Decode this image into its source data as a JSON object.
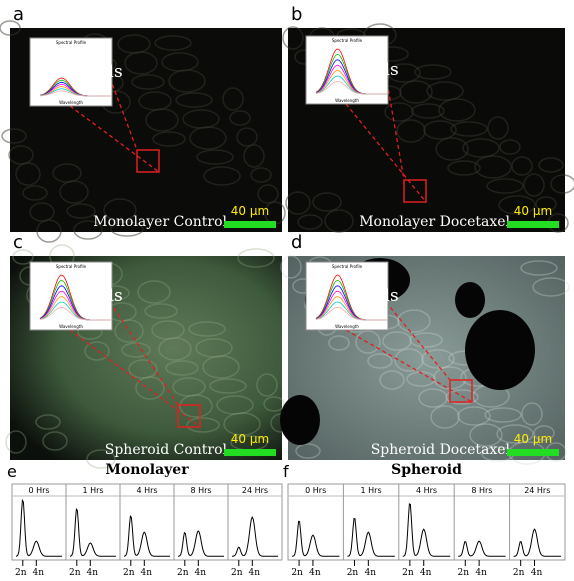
{
  "panels": [
    {
      "letter": "a",
      "caption": "Monolayer Control",
      "scale": "40 μm",
      "inset_label": "Cells",
      "inset_title": "Spectral Profile",
      "inset_xlabel": "Wavelength"
    },
    {
      "letter": "b",
      "caption": "Monolayer Docetaxel",
      "scale": "40 μm",
      "inset_label": "Cells",
      "inset_title": "Spectral Profile",
      "inset_xlabel": "Wavelength"
    },
    {
      "letter": "c",
      "caption": "Spheroid Control",
      "scale": "40 μm",
      "inset_label": "Cells",
      "inset_title": "Spectral Profile",
      "inset_xlabel": "Wavelength"
    },
    {
      "letter": "d",
      "caption": "Spheroid Docetaxel",
      "scale": "40 μm",
      "inset_label": "Cells",
      "inset_title": "Spectral Profile",
      "inset_xlabel": "Wavelength"
    }
  ],
  "histograms": [
    {
      "letter": "e",
      "title": "Monolayer",
      "times": [
        "0 Hrs",
        "1 Hrs",
        "4 Hrs",
        "8 Hrs",
        "24 Hrs"
      ],
      "x_labels": [
        "2n",
        "4n"
      ]
    },
    {
      "letter": "f",
      "title": "Spheroid",
      "times": [
        "0 Hrs",
        "1 Hrs",
        "4 Hrs",
        "8 Hrs",
        "24 Hrs"
      ],
      "x_labels": [
        "2n",
        "4n"
      ]
    }
  ]
}
